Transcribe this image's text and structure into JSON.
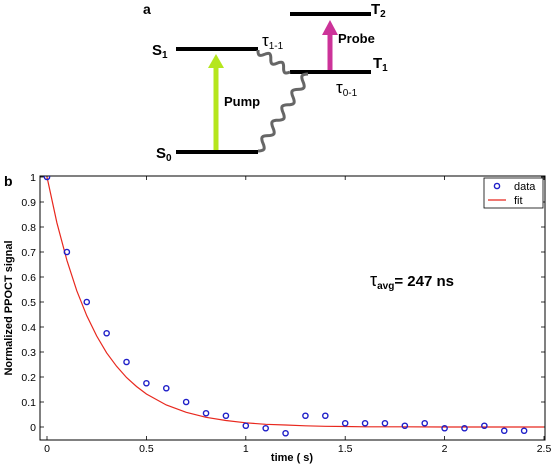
{
  "panel_a": {
    "letter": "a",
    "levels": {
      "s1": {
        "main": "S",
        "sub": "1"
      },
      "s0": {
        "main": "S",
        "sub": "0"
      },
      "t1": {
        "main": "T",
        "sub": "1"
      },
      "t2": {
        "main": "T",
        "sub": "2"
      }
    },
    "pump_label": "Pump",
    "probe_label": "Probe",
    "tau_11": {
      "main": "τ",
      "sub": "1-1"
    },
    "tau_01": {
      "main": "τ",
      "sub": "0-1"
    },
    "colors": {
      "pump": "#b5e61d",
      "probe": "#cc3399",
      "level": "#000000",
      "wavy": "#666666"
    }
  },
  "chart_data": {
    "panel_letter": "b",
    "type": "scatter",
    "xlabel": "time ( s)",
    "ylabel": "Normalized PPOCT signal",
    "xlim": [
      0,
      2.5
    ],
    "ylim": [
      0,
      1
    ],
    "xticks": [
      "0",
      "0.5",
      "1",
      "1.5",
      "2",
      "2.5"
    ],
    "yticks": [
      "0",
      "0.1",
      "0.2",
      "0.3",
      "0.4",
      "0.5",
      "0.6",
      "0.7",
      "0.8",
      "0.9",
      "1"
    ],
    "grid": false,
    "legend_position": "top-right",
    "annotation": {
      "main": "τ",
      "sub": "avg",
      "rest": "= 247 ns"
    },
    "series": [
      {
        "name": "data",
        "kind": "markers",
        "color": "#1f1fc8",
        "x": [
          0,
          0.1,
          0.2,
          0.3,
          0.4,
          0.5,
          0.6,
          0.7,
          0.8,
          0.9,
          1.0,
          1.1,
          1.2,
          1.3,
          1.4,
          1.5,
          1.6,
          1.7,
          1.8,
          1.9,
          2.0,
          2.1,
          2.2,
          2.3,
          2.4
        ],
        "y": [
          1.0,
          0.7,
          0.5,
          0.375,
          0.26,
          0.175,
          0.155,
          0.1,
          0.055,
          0.045,
          0.005,
          -0.005,
          -0.025,
          0.045,
          0.045,
          0.015,
          0.015,
          0.015,
          0.005,
          0.015,
          -0.005,
          -0.005,
          0.005,
          -0.015,
          -0.015
        ]
      },
      {
        "name": "fit",
        "kind": "line",
        "color": "#e8281e",
        "x": [
          0,
          0.05,
          0.1,
          0.15,
          0.2,
          0.25,
          0.3,
          0.35,
          0.4,
          0.45,
          0.5,
          0.6,
          0.7,
          0.8,
          0.9,
          1.0,
          1.1,
          1.2,
          1.3,
          1.4,
          1.5,
          1.6,
          1.8,
          2.0,
          2.2,
          2.5
        ],
        "y": [
          1.0,
          0.817,
          0.667,
          0.545,
          0.445,
          0.364,
          0.297,
          0.243,
          0.198,
          0.162,
          0.132,
          0.088,
          0.059,
          0.039,
          0.026,
          0.017,
          0.011,
          0.008,
          0.005,
          0.003,
          0.002,
          0.001,
          0.001,
          0.0,
          0.0,
          0.0
        ]
      }
    ]
  }
}
